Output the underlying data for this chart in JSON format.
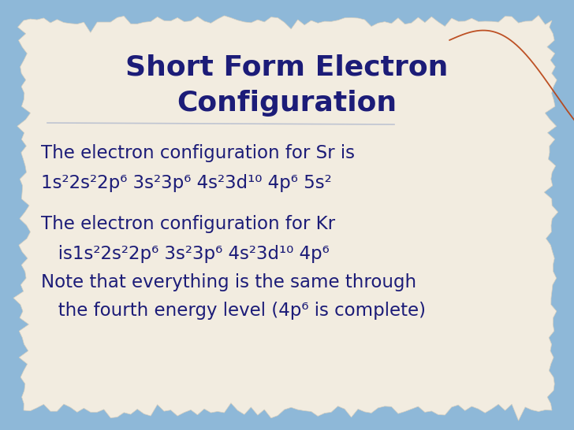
{
  "title_line1": "Short Form Electron",
  "title_line2": "Configuration",
  "title_color": "#1c1c78",
  "title_fontsize": 26,
  "bg_outer_color": "#8eb8d8",
  "bg_paper_color": "#f2ece0",
  "text_color": "#1c1c78",
  "body_fontsize": 16.5,
  "line1": "The electron configuration for Sr is",
  "line2": "1s²2s²2p⁶ 3s²3p⁶ 4s²3d¹⁰ 4p⁶ 5s²",
  "line3": "The electron configuration for Kr",
  "line4": "   is1s²2s²2p⁶ 3s²3p⁶ 4s²3d¹⁰ 4p⁶",
  "line5": "Note that everything is the same through",
  "line6": "   the fourth energy level (4p⁶ is complete)",
  "divider_color": "#aab4cc",
  "thread_color": "#b84010"
}
